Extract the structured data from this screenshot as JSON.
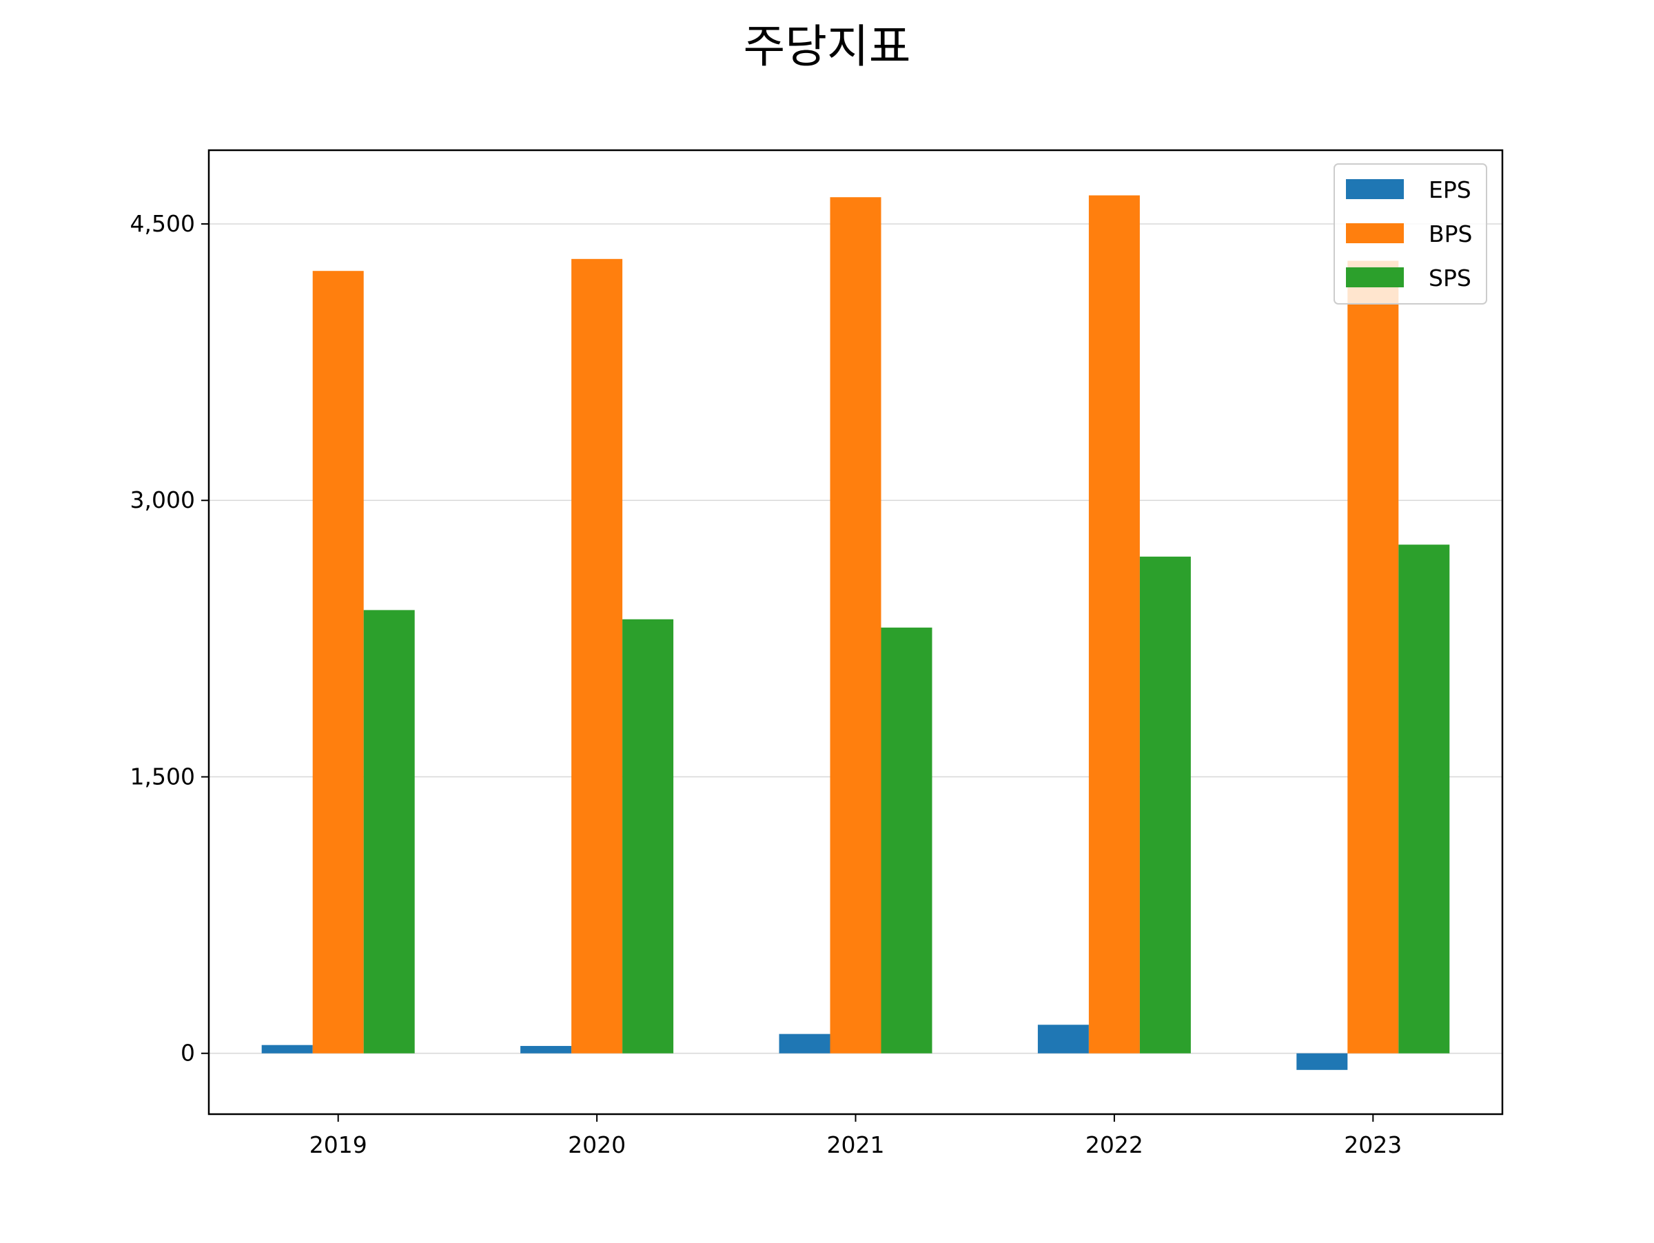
{
  "chart_data": {
    "type": "bar",
    "title": "주당지표",
    "xlabel": "",
    "ylabel": "",
    "categories": [
      "2019",
      "2020",
      "2021",
      "2022",
      "2023"
    ],
    "series": [
      {
        "name": "EPS",
        "color": "#1f77b4",
        "values": [
          45,
          40,
          105,
          155,
          -90
        ]
      },
      {
        "name": "BPS",
        "color": "#ff7f0e",
        "values": [
          4245,
          4310,
          4645,
          4655,
          4300
        ]
      },
      {
        "name": "SPS",
        "color": "#2ca02c",
        "values": [
          2405,
          2355,
          2310,
          2695,
          2760
        ]
      }
    ],
    "ylim": [
      -330,
      4900
    ],
    "yticks": [
      0,
      1500,
      3000,
      4500
    ],
    "ytick_labels": [
      "0",
      "1,500",
      "3,000",
      "4,500"
    ],
    "grid": "horizontal",
    "legend_position": "top-right"
  }
}
